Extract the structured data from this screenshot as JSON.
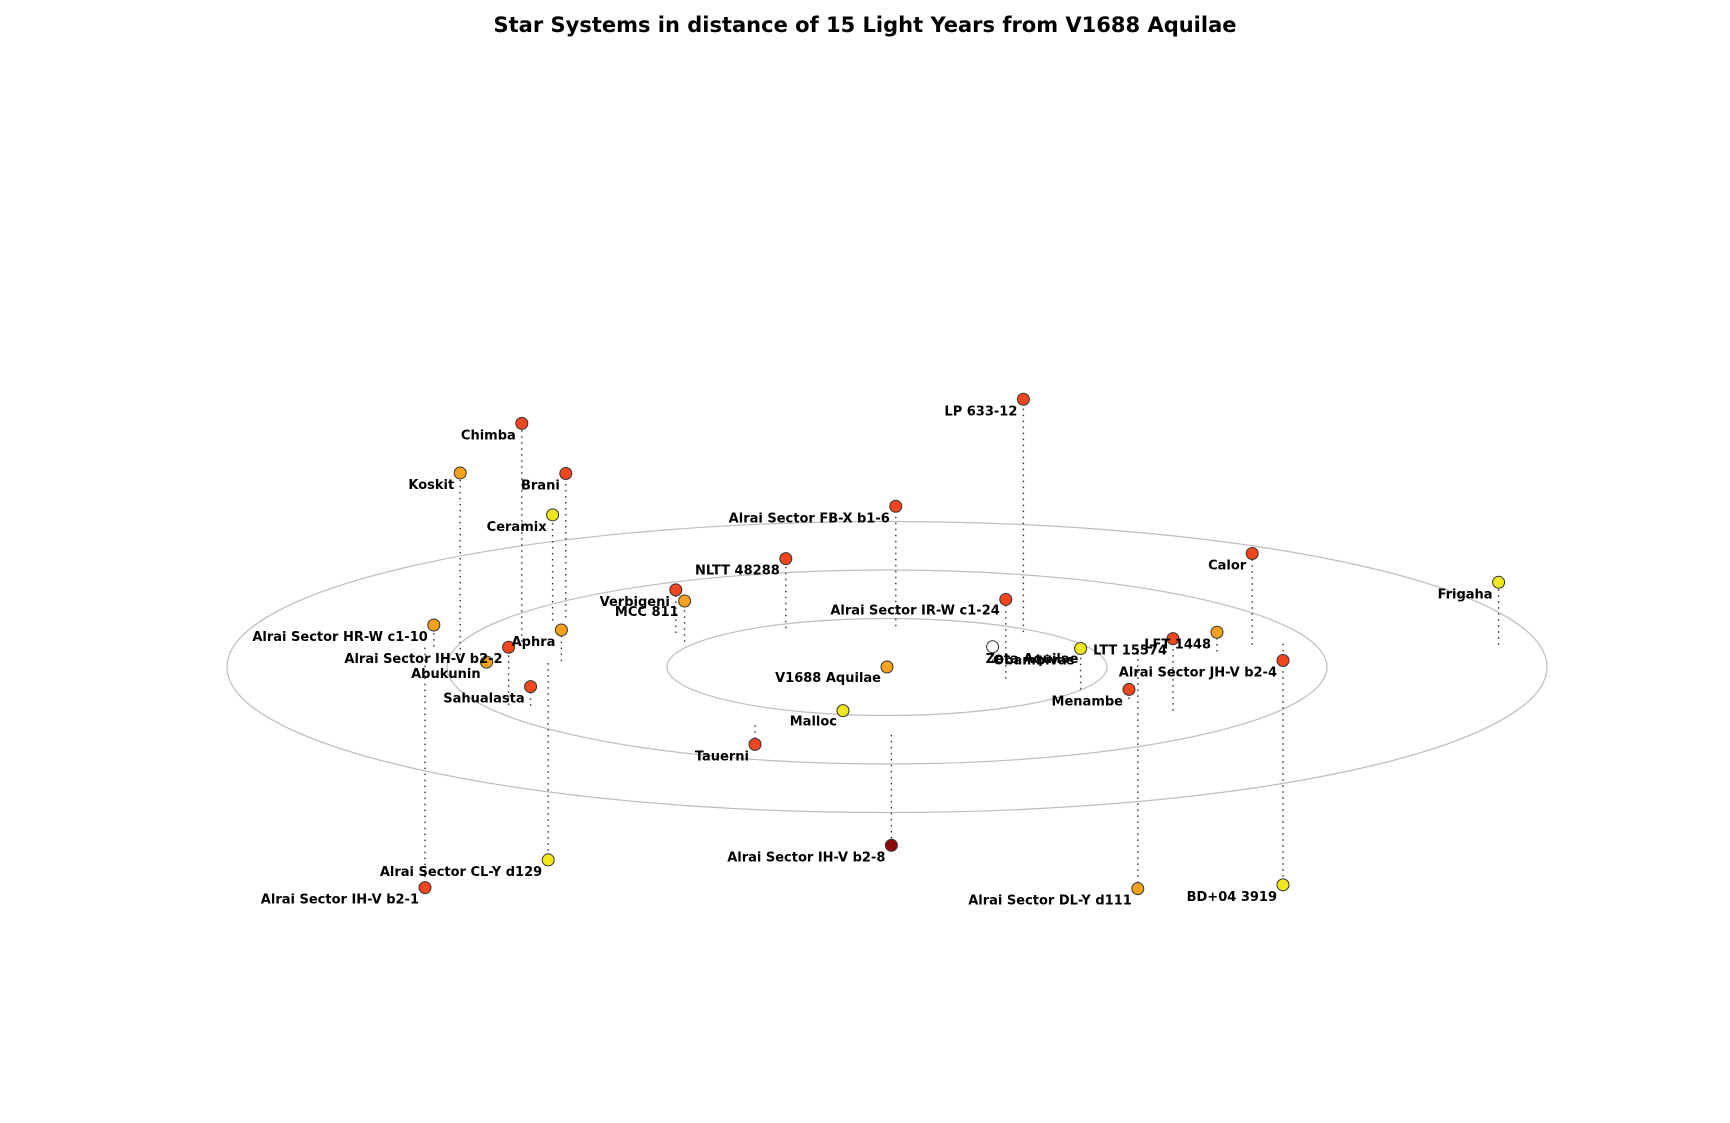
{
  "chart_data": {
    "type": "scatter",
    "title": "Star Systems in distance of 15 Light Years from V1688 Aquilae",
    "center": "V1688 Aquilae",
    "rings": [
      5,
      10,
      15
    ],
    "ring_units": "ly",
    "colors": {
      "red": "#f2461e",
      "orange": "#f7a21e",
      "yellow": "#f2e61e",
      "darkred": "#8b0a0a",
      "white": "#ffffff"
    },
    "systems": [
      {
        "name": "V1688 Aquilae",
        "x": 0.0,
        "y": 0.0,
        "z": 0.0,
        "color": "#f7a21e"
      },
      {
        "name": "Zeta Aquilae",
        "x": 2.4,
        "y": 0.6,
        "z": 0.6,
        "color": "#ffffff"
      },
      {
        "name": "Alrai Sector IR-W c1-24",
        "x": 2.7,
        "y": -1.2,
        "z": 3.3,
        "color": "#f2461e"
      },
      {
        "name": "MCC 811",
        "x": -4.6,
        "y": 2.6,
        "z": 1.7,
        "color": "#f7a21e"
      },
      {
        "name": "Obambivas",
        "x": 4.4,
        "y": -2.3,
        "z": 1.7,
        "color": "#f2e61e"
      },
      {
        "name": "Malloc",
        "x": -1.0,
        "y": -4.0,
        "z": -0.2,
        "color": "#f2e61e"
      },
      {
        "name": "Verbigeni",
        "x": -4.8,
        "y": 3.5,
        "z": 1.8,
        "color": "#f2461e"
      },
      {
        "name": "Alrai Sector FB-X b1-6",
        "x": 0.2,
        "y": 4.2,
        "z": 5.0,
        "color": "#f2461e"
      },
      {
        "name": "Tauerni",
        "x": -3.0,
        "y": -6.0,
        "z": -0.8,
        "color": "#f2461e"
      },
      {
        "name": "Menambe",
        "x": 5.5,
        "y": -3.3,
        "z": 0.4,
        "color": "#f2461e"
      },
      {
        "name": "LTT 15574",
        "x": 6.5,
        "y": -4.5,
        "z": 3.0,
        "color": "#f2461e"
      },
      {
        "name": "LFT 1448",
        "x": 7.5,
        "y": 1.6,
        "z": 0.8,
        "color": "#f7a21e"
      },
      {
        "name": "Calor",
        "x": 8.3,
        "y": 2.3,
        "z": 3.8,
        "color": "#f2461e"
      },
      {
        "name": "Alrai Sector JH-V b2-4",
        "x": 9.0,
        "y": 2.4,
        "z": -0.7,
        "color": "#f2461e"
      },
      {
        "name": "LP 633-12",
        "x": 3.1,
        "y": 3.6,
        "z": 9.7,
        "color": "#f2461e"
      },
      {
        "name": "NLTT 48288",
        "x": -2.3,
        "y": 4.0,
        "z": 2.9,
        "color": "#f2461e"
      },
      {
        "name": "Aphra",
        "x": -7.4,
        "y": 0.6,
        "z": 1.3,
        "color": "#f7a21e"
      },
      {
        "name": "Abukunin",
        "x": -9.1,
        "y": 1.0,
        "z": -0.2,
        "color": "#f7a21e"
      },
      {
        "name": "Sahualasta",
        "x": -8.1,
        "y": -4.0,
        "z": 0.8,
        "color": "#f2461e"
      },
      {
        "name": "Alrai Sector IH-V b2-2",
        "x": -8.6,
        "y": -3.9,
        "z": 2.4,
        "color": "#f2461e"
      },
      {
        "name": "Alrai Sector CL-Y d129",
        "x": -7.7,
        "y": 0.4,
        "z": -8.2,
        "color": "#f2e61e"
      },
      {
        "name": "Alrai Sector DL-Y d111",
        "x": 5.7,
        "y": 1.4,
        "z": -9.8,
        "color": "#f7a21e"
      },
      {
        "name": "BD+04 3919",
        "x": 9.0,
        "y": 0.8,
        "z": -9.4,
        "color": "#f2e61e"
      },
      {
        "name": "Alrai Sector IH-V b2-8",
        "x": 0.1,
        "y": -7.0,
        "z": -4.6,
        "color": "#8b0a0a"
      },
      {
        "name": "Alrai Sector IH-V b2-1",
        "x": -10.5,
        "y": 2.0,
        "z": -10.0,
        "color": "#f2461e"
      },
      {
        "name": "Alrai Sector HR-W c1-10",
        "x": -10.3,
        "y": 2.1,
        "z": 0.9,
        "color": "#f7a21e"
      },
      {
        "name": "Koskit",
        "x": -9.7,
        "y": 1.2,
        "z": 7.6,
        "color": "#f7a21e"
      },
      {
        "name": "Ceramix",
        "x": -7.6,
        "y": 4.8,
        "z": 4.4,
        "color": "#f2e61e"
      },
      {
        "name": "Chimba",
        "x": -8.3,
        "y": 2.6,
        "z": 9.1,
        "color": "#f2461e"
      },
      {
        "name": "Brani",
        "x": -7.3,
        "y": 5.1,
        "z": 6.0,
        "color": "#f2461e"
      },
      {
        "name": "Frigaha",
        "x": 13.9,
        "y": 2.3,
        "z": 2.6,
        "color": "#f2e61e"
      }
    ]
  }
}
